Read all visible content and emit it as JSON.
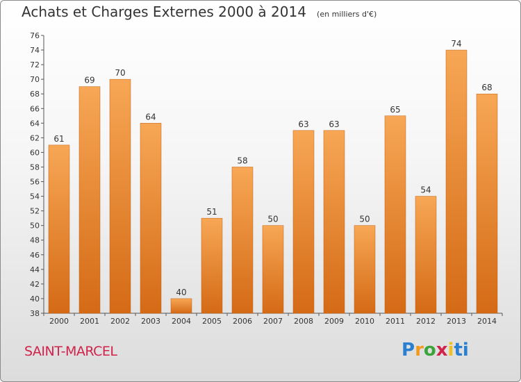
{
  "header": {
    "title": "Achats et Charges Externes 2000 à 2014",
    "subtitle": "(en milliers d'€)"
  },
  "footer": {
    "location": "SAINT-MARCEL",
    "logo_letters": [
      "P",
      "r",
      "o",
      "x",
      "i",
      "ti"
    ]
  },
  "colors": {
    "bar_light": "#f7a755",
    "bar_dark": "#d46a16",
    "title": "#333333",
    "location": "#d0224a"
  },
  "chart_data": {
    "type": "bar",
    "title": "Achats et Charges Externes 2000 à 2014",
    "subtitle": "(en milliers d'€)",
    "xlabel": "",
    "ylabel": "",
    "categories": [
      "2000",
      "2001",
      "2002",
      "2003",
      "2004",
      "2005",
      "2006",
      "2007",
      "2008",
      "2009",
      "2010",
      "2011",
      "2012",
      "2013",
      "2014"
    ],
    "values": [
      61,
      69,
      70,
      64,
      40,
      51,
      58,
      50,
      63,
      63,
      50,
      65,
      54,
      74,
      68
    ],
    "ylim": [
      38,
      76
    ],
    "yticks": [
      38,
      40,
      42,
      44,
      46,
      48,
      50,
      52,
      54,
      56,
      58,
      60,
      62,
      64,
      66,
      68,
      70,
      72,
      74,
      76
    ],
    "grid": false,
    "data_labels": true,
    "legend": "none"
  }
}
